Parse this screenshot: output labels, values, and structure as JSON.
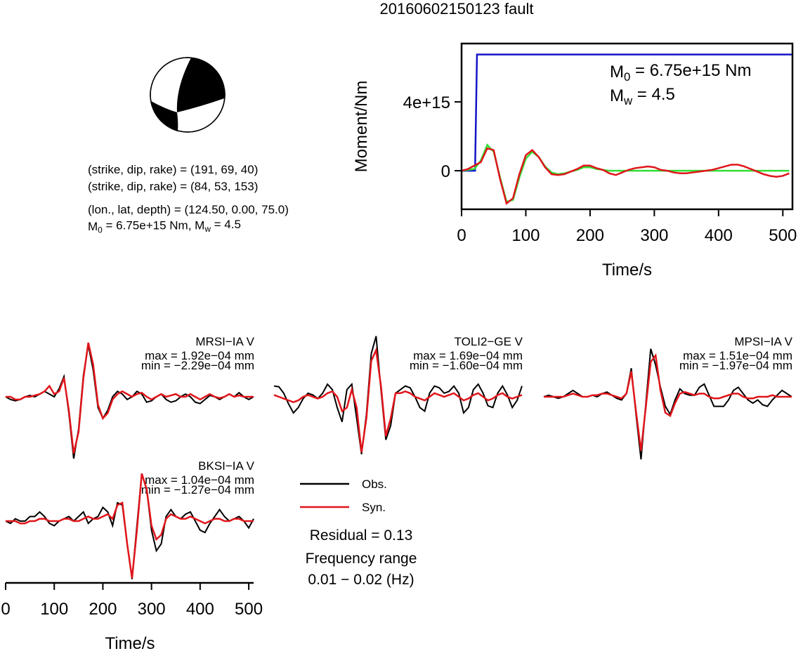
{
  "title": "20160602150123 fault",
  "focal_text": [
    "(strike, dip, rake) = (191, 69, 40)",
    "(strike, dip, rake) = (84, 53, 153)",
    "(lon., lat, depth) = (124.50, 0.00, 75.0)"
  ],
  "moment_text": [
    "M",
    "0",
    " = 6.75e+15 Nm, M",
    "w",
    " = 4.5"
  ],
  "chart_data": [
    {
      "type": "line",
      "xlabel": "Time/s",
      "ylabel": "Moment/Nm",
      "xlim": [
        0,
        515
      ],
      "ylim": [
        -2240000000000000.0,
        7390000000000000.0
      ],
      "xticks": [
        0,
        100,
        200,
        300,
        400,
        500
      ],
      "yticks": [
        0,
        {
          "value": 4000000000000000.0,
          "label": "4e+15"
        }
      ],
      "annotations": [
        [
          "M",
          "0",
          " = 6.75e+15 Nm"
        ],
        [
          "M",
          "w",
          " = 4.5"
        ]
      ],
      "x": [
        0,
        10,
        20,
        30,
        40,
        50,
        60,
        70,
        80,
        90,
        100,
        110,
        120,
        130,
        140,
        150,
        160,
        170,
        180,
        190,
        200,
        210,
        220,
        230,
        240,
        250,
        260,
        270,
        280,
        290,
        300,
        310,
        320,
        330,
        340,
        350,
        360,
        370,
        380,
        390,
        400,
        410,
        420,
        430,
        440,
        450,
        460,
        470,
        480,
        490,
        500,
        510
      ],
      "series": [
        {
          "color": "#1414c8",
          "x": [
            0,
            21,
            24,
            515
          ],
          "values": [
            0,
            0,
            6750000000000000.0,
            6750000000000000.0
          ]
        },
        {
          "color": "#33dd33",
          "values": [
            0,
            50000000000000.0,
            100000000000000.0,
            600000000000000.0,
            1500000000000000.0,
            1100000000000000.0,
            -400000000000000.0,
            -1800000000000000.0,
            -1700000000000000.0,
            -400000000000000.0,
            700000000000000.0,
            1100000000000000.0,
            800000000000000.0,
            250000000000000.0,
            -100000000000000.0,
            -200000000000000.0,
            -150000000000000.0,
            -50000000000000.0,
            50000000000000.0,
            200000000000000.0,
            200000000000000.0,
            100000000000000.0,
            50000000000000.0,
            0,
            0,
            0,
            0,
            0,
            0,
            0,
            0,
            0,
            0,
            0,
            0,
            0,
            0,
            0,
            0,
            0,
            0,
            0,
            0,
            0,
            0,
            0,
            0,
            0,
            0,
            0,
            0,
            0
          ]
        },
        {
          "color": "#e0151a",
          "values": [
            0,
            100000000000000.0,
            300000000000000.0,
            500000000000000.0,
            1300000000000000.0,
            1200000000000000.0,
            -500000000000000.0,
            -1900000000000000.0,
            -1600000000000000.0,
            -200000000000000.0,
            900000000000000.0,
            1200000000000000.0,
            800000000000000.0,
            200000000000000.0,
            -200000000000000.0,
            -250000000000000.0,
            -200000000000000.0,
            -50000000000000.0,
            100000000000000.0,
            300000000000000.0,
            300000000000000.0,
            150000000000000.0,
            50000000000000.0,
            -150000000000000.0,
            -250000000000000.0,
            -100000000000000.0,
            50000000000000.0,
            150000000000000.0,
            200000000000000.0,
            250000000000000.0,
            200000000000000.0,
            50000000000000.0,
            0,
            -100000000000000.0,
            -150000000000000.0,
            -150000000000000.0,
            -100000000000000.0,
            -50000000000000.0,
            0,
            50000000000000.0,
            150000000000000.0,
            250000000000000.0,
            350000000000000.0,
            350000000000000.0,
            250000000000000.0,
            100000000000000.0,
            -50000000000000.0,
            -200000000000000.0,
            -300000000000000.0,
            -350000000000000.0,
            -300000000000000.0,
            -150000000000000.0
          ]
        }
      ]
    },
    {
      "type": "line",
      "xlabel": "Time/s",
      "xlim": [
        0,
        510
      ],
      "xticks": [
        0,
        100,
        200,
        300,
        400,
        500
      ],
      "x": [
        0,
        10,
        20,
        30,
        40,
        50,
        60,
        70,
        80,
        90,
        100,
        110,
        120,
        130,
        140,
        150,
        160,
        170,
        180,
        190,
        200,
        210,
        220,
        230,
        240,
        250,
        260,
        270,
        280,
        290,
        300,
        310,
        320,
        330,
        340,
        350,
        360,
        370,
        380,
        390,
        400,
        410,
        420,
        430,
        440,
        450,
        460,
        470,
        480,
        490,
        500,
        510
      ],
      "legend": [
        {
          "name": "Obs.",
          "color": "#000000"
        },
        {
          "name": "Syn.",
          "color": "#e0151a"
        }
      ],
      "residual": "Residual = 0.13",
      "frequency": [
        "Frequency range",
        "0.01 − 0.02 (Hz)"
      ],
      "panels": [
        {
          "station": "MRSI−IA V",
          "max_label": "max = 1.92e−04 mm",
          "min_label": "min = −2.29e−04 mm",
          "ylim": [
            -0.000247,
            0.000247
          ],
          "obs": [
            0,
            -1e-05,
            -1.5e-05,
            -1e-05,
            0,
            5e-06,
            0,
            1e-05,
            2e-05,
            1e-05,
            0,
            3e-05,
            7.5e-05,
            -6e-05,
            -0.000229,
            -0.00012,
            8e-05,
            0.000192,
            0.0001,
            -4e-05,
            -8e-05,
            -5e-05,
            0,
            2e-05,
            1e-05,
            -1e-05,
            0,
            2e-05,
            1e-05,
            -2e-05,
            -1.5e-05,
            0,
            1e-05,
            -1e-05,
            -2e-05,
            -1.5e-05,
            0,
            1e-05,
            0,
            -2e-05,
            -2.5e-05,
            -1e-05,
            5e-06,
            0,
            -1e-05,
            0,
            1e-05,
            0,
            1.5e-05,
            0,
            -1e-05,
            0
          ],
          "syn": [
            0,
            0,
            -1e-05,
            -1e-05,
            0,
            0,
            5e-06,
            1e-05,
            2e-05,
            4e-05,
            1e-05,
            2e-05,
            7e-05,
            -5e-05,
            -0.00021,
            -0.00013,
            7e-05,
            0.0002,
            0.00012,
            -3e-05,
            -8e-05,
            -6e-05,
            -1e-05,
            1e-05,
            2e-05,
            1e-05,
            0,
            1e-05,
            1.5e-05,
            0,
            -1e-05,
            0,
            1e-05,
            0,
            5e-06,
            1e-05,
            0,
            0,
            1e-05,
            0,
            -1e-05,
            0,
            1e-05,
            0,
            -5e-06,
            0,
            1e-05,
            0,
            5e-06,
            0,
            0,
            0
          ]
        },
        {
          "station": "TOLI2−GE V",
          "max_label": "max = 1.69e−04 mm",
          "min_label": "min = −1.60e−04 mm",
          "ylim": [
            -0.000186,
            0.000186
          ],
          "obs": [
            3e-05,
            2.8e-05,
            1e-05,
            -2e-05,
            -4.5e-05,
            -3e-05,
            -5e-06,
            1e-05,
            5e-06,
            -5e-06,
            1e-05,
            3.5e-05,
            2e-05,
            -3e-05,
            -7e-05,
            2e-05,
            3.5e-05,
            -6e-05,
            -0.00016,
            -5e-05,
            0.00012,
            0.000169,
            2e-05,
            -0.00012,
            -8e-05,
            1e-05,
            2e-05,
            3e-05,
            2.5e-05,
            0,
            -3e-05,
            -4e-05,
            1e-05,
            3e-05,
            2.5e-05,
            1e-05,
            1.5e-05,
            3e-05,
            1e-05,
            -4.5e-05,
            -3e-05,
            2e-05,
            3.5e-05,
            1e-05,
            -2.5e-05,
            -3e-05,
            1e-05,
            3e-05,
            5e-06,
            -3e-05,
            -1e-05,
            3e-05
          ],
          "syn": [
            5e-06,
            0,
            -5e-06,
            -1e-05,
            -1.5e-05,
            -1e-05,
            0,
            5e-06,
            0,
            -5e-06,
            0,
            1e-05,
            1.5e-05,
            0,
            -4e-05,
            -3e-05,
            2e-05,
            -3e-05,
            -0.000155,
            -6e-05,
            0.0001,
            0.00013,
            3e-05,
            -0.00011,
            -6e-05,
            1e-05,
            1e-05,
            1.5e-05,
            1e-05,
            0,
            -5e-06,
            -1e-05,
            0,
            1e-05,
            5e-06,
            0,
            5e-06,
            1e-05,
            0,
            -1e-05,
            -5e-06,
            5e-06,
            1e-05,
            0,
            -1e-05,
            -5e-06,
            5e-06,
            1e-05,
            0,
            -5e-06,
            0,
            5e-06
          ]
        },
        {
          "station": "MPSI−IA V",
          "max_label": "max = 1.51e−04 mm",
          "min_label": "min = −1.97e−04 mm",
          "ylim": [
            -0.00021,
            0.00021
          ],
          "obs": [
            0,
            5e-06,
            0,
            -5e-06,
            0,
            1e-05,
            2e-05,
            1e-05,
            0,
            0,
            5e-06,
            0,
            1e-05,
            1.5e-05,
            5e-06,
            -5e-06,
            -1e-05,
            1e-05,
            9e-05,
            -6e-05,
            -0.000197,
            -2e-05,
            0.000151,
            0.0001,
            3e-05,
            -3e-05,
            -5.5e-05,
            -1e-05,
            2.5e-05,
            1e-05,
            5e-06,
            5e-06,
            3e-05,
            4e-05,
            5e-06,
            -3e-05,
            -3e-05,
            -3e-05,
            -1e-05,
            2e-05,
            3e-05,
            1e-05,
            -1e-05,
            -2e-05,
            -1e-05,
            -2.5e-05,
            -3e-05,
            -1e-05,
            5e-06,
            2e-05,
            1e-05,
            0
          ],
          "syn": [
            0,
            0,
            0,
            0,
            0,
            5e-06,
            1e-05,
            5e-06,
            0,
            0,
            5e-06,
            5e-06,
            1e-05,
            1e-05,
            5e-06,
            0,
            -5e-06,
            1e-05,
            8e-05,
            -5e-05,
            -0.00017,
            -3e-05,
            0.00011,
            0.00013,
            2e-05,
            -5e-05,
            -6e-05,
            -2e-05,
            1e-05,
            1.5e-05,
            1e-05,
            5e-06,
            1e-05,
            1e-05,
            0,
            -5e-06,
            -5e-06,
            0,
            5e-06,
            1e-05,
            1e-05,
            0,
            -5e-06,
            -5e-06,
            0,
            0,
            0,
            5e-06,
            0,
            0,
            0,
            0
          ]
        },
        {
          "station": "BKSI−IA V",
          "max_label": "max = 1.04e−04 mm",
          "min_label": "min = −1.27e−04 mm",
          "ylim": [
            -0.000146,
            0.000146
          ],
          "obs": [
            0,
            -5e-06,
            5e-06,
            0,
            0,
            1e-05,
            1e-05,
            2e-05,
            1e-05,
            -5e-06,
            -1e-05,
            0,
            5e-06,
            1e-05,
            0,
            1e-05,
            2e-05,
            -5e-06,
            5e-06,
            1e-05,
            3e-05,
            2e-05,
            -1e-05,
            4e-05,
            3.5e-05,
            -5e-05,
            -0.000127,
            -1e-05,
            0.000104,
            7e-05,
            -2e-05,
            -6.5e-05,
            -5e-05,
            1e-05,
            2.5e-05,
            1e-05,
            5e-06,
            1.5e-05,
            2e-05,
            0,
            -2e-05,
            -2.5e-05,
            -5e-06,
            1e-05,
            2.5e-05,
            1e-05,
            0,
            5e-06,
            1e-05,
            0,
            -1.5e-05,
            5e-06
          ],
          "syn": [
            0,
            0,
            0,
            -5e-06,
            -5e-06,
            0,
            0,
            5e-06,
            5e-06,
            0,
            0,
            0,
            5e-06,
            5e-06,
            0,
            0,
            5e-06,
            1e-05,
            5e-06,
            5e-06,
            1e-05,
            1.5e-05,
            5e-06,
            3.5e-05,
            4e-05,
            -5e-05,
            -0.000125,
            -2e-05,
            0.000104,
            7e-05,
            -1e-05,
            -4e-05,
            -3e-05,
            5e-06,
            1.5e-05,
            1e-05,
            5e-06,
            5e-06,
            1e-05,
            5e-06,
            0,
            -5e-06,
            0,
            5e-06,
            5e-06,
            0,
            0,
            5e-06,
            5e-06,
            0,
            0,
            0
          ]
        }
      ]
    }
  ]
}
